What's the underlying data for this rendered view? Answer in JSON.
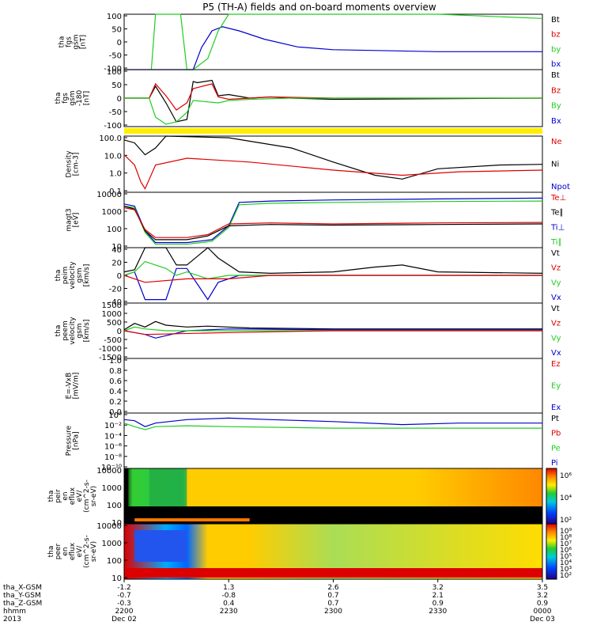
{
  "title": "P5 (TH-A) fields and on-board moments overview",
  "colors": {
    "black": "#000000",
    "red": "#dd0000",
    "green": "#22cc22",
    "blue": "#0000cc",
    "yellow": "#ffee00",
    "dark_red": "#8b1a1a"
  },
  "chart_data": [
    {
      "type": "line",
      "ylabel": [
        "tha",
        "fgs",
        "gsm",
        "[nT]"
      ],
      "yticks": [
        "100",
        "50",
        "0",
        "-50",
        "-100"
      ],
      "ylim": [
        -100,
        100
      ],
      "legend": [
        {
          "label": "Bt",
          "color": "black"
        },
        {
          "label": "bz",
          "color": "red"
        },
        {
          "label": "by",
          "color": "green"
        },
        {
          "label": "bx",
          "color": "blue"
        }
      ],
      "series": [
        {
          "name": "bx",
          "color": "blue",
          "x": [
            22.0,
            22.33,
            22.37,
            22.42,
            22.47,
            22.55,
            22.67,
            22.83,
            23.0,
            23.5,
            24.0
          ],
          "y": [
            -100,
            -100,
            -20,
            40,
            55,
            40,
            10,
            -18,
            -28,
            -35,
            -35
          ]
        },
        {
          "name": "by",
          "color": "green",
          "x": [
            22.13,
            22.15,
            22.17,
            22.2,
            22.27,
            22.3,
            22.33,
            22.4,
            22.45,
            22.5,
            22.67,
            23.0,
            23.5,
            24.0
          ],
          "y": [
            -100,
            100,
            100,
            100,
            100,
            -100,
            -100,
            -60,
            40,
            100,
            100,
            100,
            100,
            85
          ]
        }
      ]
    },
    {
      "type": "line",
      "ylabel": [
        "tha",
        "fgs",
        "gsm",
        "-180",
        "[nT]"
      ],
      "yticks": [
        "100",
        "50",
        "0",
        "-50",
        "-100"
      ],
      "ylim": [
        -120,
        120
      ],
      "legend": [
        {
          "label": "Bt",
          "color": "black"
        },
        {
          "label": "Bz",
          "color": "red"
        },
        {
          "label": "By",
          "color": "green"
        },
        {
          "label": "Bx",
          "color": "blue"
        }
      ],
      "series": [
        {
          "name": "Bt",
          "color": "black",
          "x": [
            22.0,
            22.12,
            22.15,
            22.2,
            22.25,
            22.3,
            22.33,
            22.35,
            22.42,
            22.45,
            22.5,
            22.6,
            22.7,
            22.8,
            23.0,
            24.0
          ],
          "y": [
            0,
            0,
            50,
            -20,
            -100,
            -90,
            70,
            65,
            75,
            10,
            15,
            0,
            5,
            0,
            -5,
            0
          ]
        },
        {
          "name": "Bz",
          "color": "red",
          "x": [
            22.0,
            22.12,
            22.15,
            22.2,
            22.25,
            22.3,
            22.33,
            22.42,
            22.45,
            22.5,
            22.7,
            23.0,
            24.0
          ],
          "y": [
            0,
            0,
            60,
            10,
            -50,
            -20,
            40,
            60,
            5,
            -5,
            5,
            0,
            0
          ]
        },
        {
          "name": "By",
          "color": "green",
          "x": [
            22.0,
            22.12,
            22.15,
            22.2,
            22.25,
            22.3,
            22.33,
            22.45,
            22.5,
            22.6,
            22.8,
            24.0
          ],
          "y": [
            0,
            0,
            -80,
            -110,
            -100,
            -60,
            -10,
            -20,
            -10,
            -5,
            0,
            0
          ]
        }
      ]
    },
    {
      "type": "line",
      "ylabel": [
        "Density",
        "[cm-3]"
      ],
      "yticks": [
        "100.0",
        "10.0",
        "1.0",
        "0.1"
      ],
      "ylim": [
        0.05,
        100
      ],
      "scale": "log",
      "legend": [
        {
          "label": "Ne",
          "color": "red"
        },
        {
          "label": "Ni",
          "color": "black"
        },
        {
          "label": "Npot",
          "color": "blue"
        }
      ],
      "series": [
        {
          "name": "Ni",
          "color": "black",
          "x": [
            22.0,
            22.05,
            22.1,
            22.15,
            22.2,
            22.5,
            22.8,
            23.0,
            23.2,
            23.33,
            23.5,
            23.8,
            24.0
          ],
          "y": [
            60,
            40,
            8,
            20,
            100,
            80,
            20,
            3,
            0.5,
            0.3,
            1.2,
            2.0,
            2.2
          ]
        },
        {
          "name": "Ne",
          "color": "red",
          "x": [
            22.0,
            22.05,
            22.08,
            22.1,
            22.15,
            22.3,
            22.6,
            23.0,
            23.33,
            23.6,
            24.0
          ],
          "y": [
            8,
            2,
            0.2,
            0.08,
            2,
            5,
            3,
            1,
            0.5,
            0.8,
            1.0
          ]
        }
      ]
    },
    {
      "type": "line",
      "ylabel": [
        "magt3",
        "[eV]"
      ],
      "yticks": [
        "10000",
        "1000",
        "100",
        "10"
      ],
      "ylim": [
        5,
        10000
      ],
      "scale": "log",
      "legend": [
        {
          "label": "Te⊥",
          "color": "red"
        },
        {
          "label": "Te∥",
          "color": "black"
        },
        {
          "label": "Ti⊥",
          "color": "blue"
        },
        {
          "label": "Ti∥",
          "color": "green"
        }
      ],
      "series": [
        {
          "name": "Ti⊥",
          "color": "blue",
          "x": [
            22.0,
            22.05,
            22.1,
            22.15,
            22.3,
            22.42,
            22.5,
            22.55,
            22.7,
            23.0,
            23.5,
            24.0
          ],
          "y": [
            2000,
            1500,
            50,
            10,
            10,
            15,
            100,
            2500,
            3000,
            3500,
            4000,
            4500
          ]
        },
        {
          "name": "Ti∥",
          "color": "green",
          "x": [
            22.0,
            22.05,
            22.1,
            22.15,
            22.3,
            22.42,
            22.5,
            22.55,
            22.7,
            23.0,
            23.5,
            24.0
          ],
          "y": [
            1500,
            1200,
            40,
            8,
            8,
            12,
            80,
            1800,
            2200,
            2500,
            2800,
            3000
          ]
        },
        {
          "name": "Te∥",
          "color": "black",
          "x": [
            22.0,
            22.05,
            22.1,
            22.15,
            22.3,
            22.4,
            22.5,
            22.7,
            23.0,
            23.5,
            24.0
          ],
          "y": [
            1500,
            1000,
            50,
            15,
            15,
            25,
            100,
            120,
            110,
            120,
            130
          ]
        },
        {
          "name": "Te⊥",
          "color": "red",
          "x": [
            22.0,
            22.05,
            22.1,
            22.15,
            22.3,
            22.4,
            22.5,
            22.7,
            23.0,
            23.5,
            24.0
          ],
          "y": [
            1200,
            900,
            60,
            20,
            20,
            30,
            130,
            150,
            130,
            150,
            160
          ]
        }
      ]
    },
    {
      "type": "line",
      "ylabel": [
        "tha",
        "peim",
        "velocity",
        "gsm",
        "[km/s]"
      ],
      "yticks": [
        "40",
        "20",
        "0",
        "-20",
        "-40"
      ],
      "ylim": [
        -40,
        40
      ],
      "legend": [
        {
          "label": "Vt",
          "color": "black"
        },
        {
          "label": "Vz",
          "color": "red"
        },
        {
          "label": "Vy",
          "color": "green"
        },
        {
          "label": "Vx",
          "color": "blue"
        }
      ],
      "series": [
        {
          "name": "Vt",
          "color": "black",
          "x": [
            22.0,
            22.05,
            22.1,
            22.2,
            22.25,
            22.3,
            22.4,
            22.45,
            22.55,
            22.7,
            23.0,
            23.2,
            23.33,
            23.5,
            24.0
          ],
          "y": [
            5,
            8,
            40,
            40,
            15,
            15,
            40,
            25,
            5,
            3,
            5,
            12,
            15,
            5,
            3
          ]
        },
        {
          "name": "Vx",
          "color": "blue",
          "x": [
            22.0,
            22.05,
            22.1,
            22.2,
            22.25,
            22.3,
            22.4,
            22.45,
            22.55,
            22.7,
            23.0,
            24.0
          ],
          "y": [
            0,
            5,
            -35,
            -35,
            10,
            10,
            -35,
            -10,
            0,
            0,
            0,
            0
          ]
        },
        {
          "name": "Vy",
          "color": "green",
          "x": [
            22.0,
            22.05,
            22.1,
            22.2,
            22.25,
            22.3,
            22.4,
            22.5,
            22.7,
            23.0,
            24.0
          ],
          "y": [
            0,
            5,
            20,
            10,
            0,
            5,
            -5,
            0,
            0,
            0,
            0
          ]
        },
        {
          "name": "Vz",
          "color": "red",
          "x": [
            22.0,
            22.05,
            22.1,
            22.3,
            22.5,
            22.7,
            23.0,
            24.0
          ],
          "y": [
            0,
            -5,
            -10,
            -5,
            -5,
            0,
            0,
            0
          ]
        }
      ]
    },
    {
      "type": "line",
      "ylabel": [
        "tha",
        "peem",
        "velocity",
        "gsm",
        "[km/s]"
      ],
      "yticks": [
        "1500",
        "1000",
        "500",
        "0",
        "-500",
        "-1000",
        "-1500"
      ],
      "ylim": [
        -1500,
        1500
      ],
      "legend": [
        {
          "label": "Vt",
          "color": "black"
        },
        {
          "label": "Vz",
          "color": "red"
        },
        {
          "label": "Vy",
          "color": "green"
        },
        {
          "label": "Vx",
          "color": "blue"
        }
      ],
      "series": [
        {
          "name": "Vt",
          "color": "black",
          "x": [
            22.0,
            22.05,
            22.1,
            22.15,
            22.2,
            22.3,
            22.4,
            22.6,
            23.0,
            24.0
          ],
          "y": [
            50,
            400,
            200,
            500,
            300,
            200,
            250,
            150,
            100,
            100
          ]
        },
        {
          "name": "Vx",
          "color": "blue",
          "x": [
            22.0,
            22.05,
            22.1,
            22.15,
            22.3,
            22.5,
            23.0,
            24.0
          ],
          "y": [
            0,
            -100,
            -200,
            -400,
            0,
            100,
            50,
            50
          ]
        },
        {
          "name": "Vy",
          "color": "green",
          "x": [
            22.0,
            22.05,
            22.1,
            22.2,
            22.5,
            23.0,
            24.0
          ],
          "y": [
            0,
            200,
            100,
            0,
            0,
            0,
            0
          ]
        },
        {
          "name": "Vz",
          "color": "red",
          "x": [
            22.0,
            22.05,
            22.1,
            22.5,
            23.0,
            24.0
          ],
          "y": [
            0,
            -100,
            -200,
            -100,
            0,
            0
          ]
        }
      ]
    },
    {
      "type": "line",
      "ylabel": [
        "E=-VxB",
        "[mV/m]"
      ],
      "yticks": [
        "1.0",
        "0.8",
        "0.6",
        "0.4",
        "0.2",
        "0.0"
      ],
      "ylim": [
        0,
        1
      ],
      "legend": [
        {
          "label": "Ez",
          "color": "red"
        },
        {
          "label": "Ey",
          "color": "green"
        },
        {
          "label": "Ex",
          "color": "blue"
        }
      ],
      "series": []
    },
    {
      "type": "line",
      "ylabel": [
        "Pressure",
        "[nPa]"
      ],
      "yticks": [
        "10⁰",
        "10⁻²",
        "10⁻⁴",
        "10⁻⁶",
        "10⁻⁸",
        "10⁻¹⁰"
      ],
      "legend": [
        {
          "label": "Pt",
          "color": "black"
        },
        {
          "label": "Pb",
          "color": "red"
        },
        {
          "label": "Pe",
          "color": "green"
        },
        {
          "label": "Pi",
          "color": "blue"
        }
      ],
      "series": [
        {
          "name": "Pi",
          "color": "blue",
          "x": [
            22.0,
            22.05,
            22.1,
            22.15,
            22.3,
            22.5,
            22.7,
            23.0,
            23.33,
            23.6,
            24.0
          ],
          "y": [
            0.5,
            0.3,
            0.02,
            0.1,
            0.5,
            1.0,
            0.5,
            0.2,
            0.05,
            0.1,
            0.1
          ]
        },
        {
          "name": "Pe",
          "color": "green",
          "x": [
            22.0,
            22.05,
            22.1,
            22.15,
            22.3,
            22.5,
            23.0,
            23.5,
            24.0
          ],
          "y": [
            0.1,
            0.02,
            0.005,
            0.02,
            0.03,
            0.02,
            0.01,
            0.01,
            0.01
          ]
        }
      ]
    },
    {
      "type": "heatmap",
      "ylabel": [
        "tha",
        "peir",
        "en",
        "eflux",
        "eV/",
        "(cm^2-s-",
        "sr-eV)"
      ],
      "yticks": [
        "10000",
        "1000",
        "100",
        "10"
      ],
      "colorbar_ticks": [
        "10⁶",
        "10⁴",
        "10²"
      ]
    },
    {
      "type": "heatmap",
      "ylabel": [
        "tha",
        "peer",
        "en",
        "eflux",
        "eV/",
        "(cm^2-s-",
        "sr-eV)"
      ],
      "yticks": [
        "10000",
        "1000",
        "100",
        "10"
      ],
      "colorbar_ticks": [
        "10⁹",
        "10⁸",
        "10⁷",
        "10⁶",
        "10⁵",
        "10⁴",
        "10³",
        "10²"
      ]
    }
  ],
  "x_axis": {
    "labels": [
      "tha_X-GSM",
      "tha_Y-GSM",
      "tha_Z-GSM",
      "hhmm",
      "2013"
    ],
    "ticks": [
      {
        "x": 22.0,
        "lines": [
          "-1.2",
          "-0.7",
          "-0.3",
          "2200",
          "Dec 02"
        ]
      },
      {
        "x": 22.5,
        "lines": [
          "1.3",
          "-0.8",
          "0.4",
          "2230",
          ""
        ]
      },
      {
        "x": 23.0,
        "lines": [
          "2.6",
          "0.7",
          "0.7",
          "2300",
          ""
        ]
      },
      {
        "x": 23.5,
        "lines": [
          "3.2",
          "2.1",
          "0.9",
          "2330",
          ""
        ]
      },
      {
        "x": 24.0,
        "lines": [
          "3.5",
          "3.2",
          "0.9",
          "0000",
          "Dec 03"
        ]
      }
    ]
  }
}
